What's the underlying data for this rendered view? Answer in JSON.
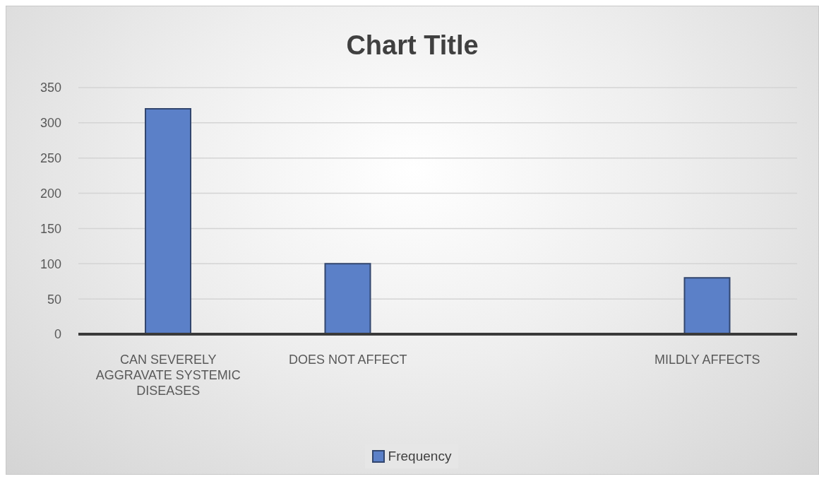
{
  "chart_data": {
    "type": "bar",
    "title": "Chart Title",
    "categories": [
      "CAN SEVERELY AGGRAVATE SYSTEMIC DISEASES",
      "DOES NOT AFFECT",
      null,
      "MILDLY AFFECTS"
    ],
    "series": [
      {
        "name": "Frequency",
        "color": "#5b80c8",
        "values": [
          320,
          100,
          null,
          80
        ]
      }
    ],
    "ylim": [
      0,
      350
    ],
    "yticks": [
      0,
      50,
      100,
      150,
      200,
      250,
      300,
      350
    ],
    "grid": "y",
    "legend": "bottom"
  }
}
